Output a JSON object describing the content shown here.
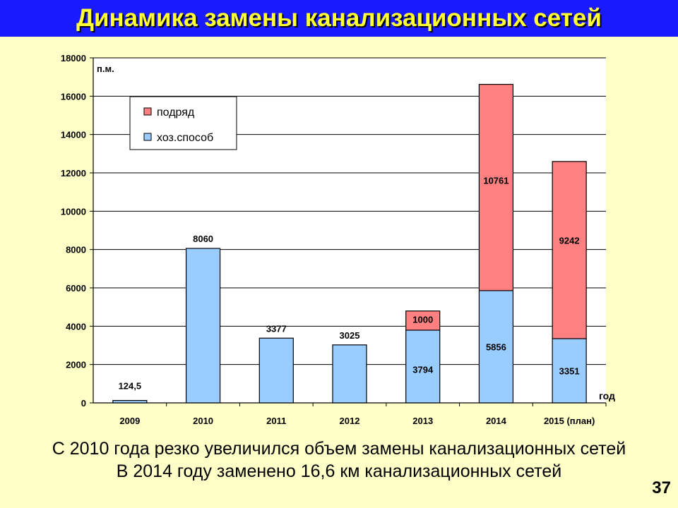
{
  "slide": {
    "title": "Динамика замены канализационных сетей",
    "subtitle_line1": "С 2010 года резко увеличился объем замены канализационных сетей",
    "subtitle_line2": "В 2014 году заменено 16,6 км канализационных сетей",
    "page_number": "37"
  },
  "colors": {
    "title_bg": "#1a1aff",
    "title_text": "#ffff33",
    "page_bg": "#ffffc8",
    "plot_bg": "#ffffff",
    "own_method": "#99ccff",
    "contract": "#ff8080"
  },
  "chart_data": {
    "type": "bar",
    "stacked": true,
    "categories": [
      "2009",
      "2010",
      "2011",
      "2012",
      "2013",
      "2014",
      "2015 (план)"
    ],
    "series": [
      {
        "name": "хоз.способ",
        "color": "#99ccff",
        "values": [
          124.5,
          8060,
          3377,
          3025,
          3794,
          5856,
          3351
        ],
        "labels": [
          "124,5",
          "8060",
          "3377",
          "3025",
          "3794",
          "5856",
          "3351"
        ]
      },
      {
        "name": "подряд",
        "color": "#ff8080",
        "values": [
          0,
          0,
          0,
          0,
          1000,
          10761,
          9242
        ],
        "labels": [
          "",
          "",
          "",
          "",
          "1000",
          "10761",
          "9242"
        ]
      }
    ],
    "ylim": [
      0,
      18000
    ],
    "yticks": [
      "0",
      "2000",
      "4000",
      "6000",
      "8000",
      "10000",
      "12000",
      "14000",
      "16000",
      "18000"
    ],
    "ylabel": "п.м.",
    "xlabel": "год",
    "grid": true,
    "legend_position": "top-left"
  }
}
